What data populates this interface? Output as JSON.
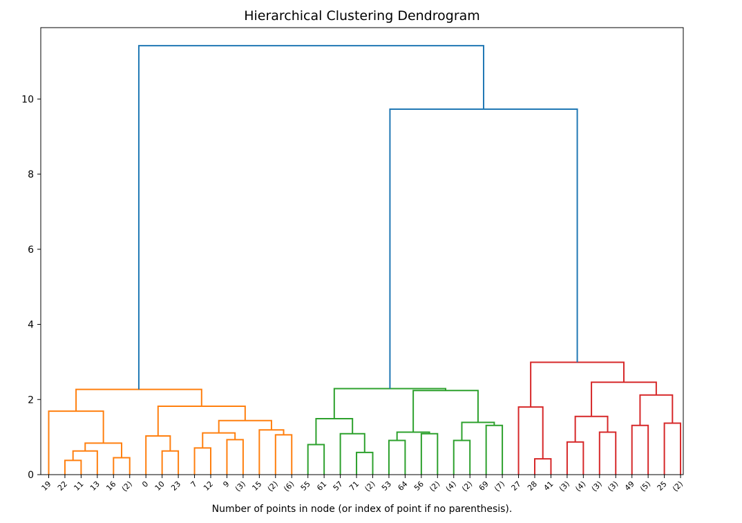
{
  "chart_data": {
    "type": "dendrogram",
    "title": "Hierarchical Clustering Dendrogram",
    "xlabel": "Number of points in node (or index of point if no parenthesis).",
    "ylabel": "",
    "ylim": [
      0,
      11.9
    ],
    "yticks": [
      0,
      2,
      4,
      6,
      8,
      10
    ],
    "leaf_labels": [
      "19",
      "22",
      "11",
      "13",
      "16",
      "(2)",
      "0",
      "10",
      "23",
      "7",
      "12",
      "9",
      "(3)",
      "15",
      "(2)",
      "(6)",
      "55",
      "61",
      "57",
      "71",
      "(2)",
      "53",
      "64",
      "56",
      "(2)",
      "(4)",
      "(2)",
      "69",
      "(7)",
      "27",
      "28",
      "41",
      "(3)",
      "(4)",
      "(3)",
      "(3)",
      "49",
      "(5)",
      "25",
      "(2)"
    ],
    "colors": {
      "orange": "#ff7f0e",
      "green": "#2ca02c",
      "red": "#d62728",
      "blue": "#1f77b4"
    },
    "links": [
      {
        "id": "a1",
        "left": "L2",
        "right": "L3",
        "height": 0.38,
        "color": "orange"
      },
      {
        "id": "a2",
        "left": "a1",
        "right": "L4",
        "height": 0.63,
        "color": "orange"
      },
      {
        "id": "a3",
        "left": "L5",
        "right": "L6",
        "height": 0.45,
        "color": "orange"
      },
      {
        "id": "a4",
        "left": "a2",
        "right": "a3",
        "height": 0.84,
        "color": "orange"
      },
      {
        "id": "a5",
        "left": "L1",
        "right": "a4",
        "height": 1.69,
        "color": "orange"
      },
      {
        "id": "a6",
        "left": "L8",
        "right": "L9",
        "height": 0.63,
        "color": "orange"
      },
      {
        "id": "a7",
        "left": "L7",
        "right": "a6",
        "height": 1.03,
        "color": "orange"
      },
      {
        "id": "a8",
        "left": "L10",
        "right": "L11",
        "height": 0.71,
        "color": "orange"
      },
      {
        "id": "a9",
        "left": "L12",
        "right": "L13",
        "height": 0.93,
        "color": "orange"
      },
      {
        "id": "a10",
        "left": "a8",
        "right": "a9",
        "height": 1.11,
        "color": "orange"
      },
      {
        "id": "a11",
        "left": "L15",
        "right": "L16",
        "height": 1.06,
        "color": "orange"
      },
      {
        "id": "a12",
        "left": "L14",
        "right": "a11",
        "height": 1.19,
        "color": "orange"
      },
      {
        "id": "a13",
        "left": "a10",
        "right": "a12",
        "height": 1.44,
        "color": "orange"
      },
      {
        "id": "a14",
        "left": "a7",
        "right": "a13",
        "height": 1.82,
        "color": "orange"
      },
      {
        "id": "a15",
        "left": "a5",
        "right": "a14",
        "height": 2.27,
        "color": "orange"
      },
      {
        "id": "g1",
        "left": "L17",
        "right": "L18",
        "height": 0.8,
        "color": "green"
      },
      {
        "id": "g2",
        "left": "L20",
        "right": "L21",
        "height": 0.59,
        "color": "green"
      },
      {
        "id": "g3",
        "left": "L19",
        "right": "g2",
        "height": 1.09,
        "color": "green"
      },
      {
        "id": "g4",
        "left": "g1",
        "right": "g3",
        "height": 1.49,
        "color": "green"
      },
      {
        "id": "g5",
        "left": "L22",
        "right": "L23",
        "height": 0.91,
        "color": "green"
      },
      {
        "id": "g6",
        "left": "L24",
        "right": "L25",
        "height": 1.09,
        "color": "green"
      },
      {
        "id": "g7",
        "left": "g5",
        "right": "g6",
        "height": 1.13,
        "color": "green"
      },
      {
        "id": "g8",
        "left": "L26",
        "right": "L27",
        "height": 0.91,
        "color": "green"
      },
      {
        "id": "g9",
        "left": "L28",
        "right": "L29",
        "height": 1.31,
        "color": "green"
      },
      {
        "id": "g10",
        "left": "g8",
        "right": "g9",
        "height": 1.39,
        "color": "green"
      },
      {
        "id": "g11",
        "left": "g7",
        "right": "g10",
        "height": 2.24,
        "color": "green"
      },
      {
        "id": "g12",
        "left": "g4",
        "right": "g11",
        "height": 2.29,
        "color": "green"
      },
      {
        "id": "r1",
        "left": "L31",
        "right": "L32",
        "height": 0.42,
        "color": "red"
      },
      {
        "id": "r2",
        "left": "L30",
        "right": "r1",
        "height": 1.8,
        "color": "red"
      },
      {
        "id": "r3",
        "left": "L33",
        "right": "L34",
        "height": 0.87,
        "color": "red"
      },
      {
        "id": "r4",
        "left": "L35",
        "right": "L36",
        "height": 1.13,
        "color": "red"
      },
      {
        "id": "r5",
        "left": "r3",
        "right": "r4",
        "height": 1.55,
        "color": "red"
      },
      {
        "id": "r6",
        "left": "L37",
        "right": "L38",
        "height": 1.31,
        "color": "red"
      },
      {
        "id": "r7",
        "left": "L39",
        "right": "L40",
        "height": 1.37,
        "color": "red"
      },
      {
        "id": "r8",
        "left": "r6",
        "right": "r7",
        "height": 2.12,
        "color": "red"
      },
      {
        "id": "r9",
        "left": "r5",
        "right": "r8",
        "height": 2.46,
        "color": "red"
      },
      {
        "id": "r10",
        "left": "r2",
        "right": "r9",
        "height": 2.99,
        "color": "red"
      },
      {
        "id": "b1",
        "left": "g12",
        "right": "r10",
        "height": 9.73,
        "color": "blue"
      },
      {
        "id": "b2",
        "left": "a15",
        "right": "b1",
        "height": 11.42,
        "color": "blue"
      }
    ]
  }
}
